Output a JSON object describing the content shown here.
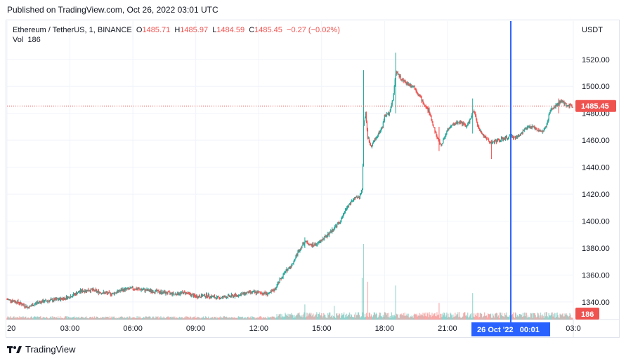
{
  "header": {
    "published": "Published on TradingView.com, Oct 26, 2022 03:01 UTC"
  },
  "legend": {
    "symbol": "Ethereum / TetherUS, 1, BINANCE",
    "o_label": "O",
    "o_value": "1485.71",
    "h_label": "H",
    "h_value": "1485.97",
    "l_label": "L",
    "l_value": "1484.59",
    "c_label": "C",
    "c_value": "1485.45",
    "change": "−0.27 (−0.02%)",
    "vol_label": "Vol",
    "vol_value": "186"
  },
  "footer": {
    "brand": "TradingView"
  },
  "colors": {
    "up": "#26a69a",
    "down": "#ef5350",
    "crosshair": "#2962ff",
    "grid": "#f0f3fa"
  },
  "chart_data": {
    "type": "candlestick",
    "currency": "USDT",
    "y_ticks": [
      1340,
      1360,
      1380,
      1400,
      1420,
      1440,
      1460,
      1480,
      1500,
      1520
    ],
    "ylim": [
      1328,
      1536
    ],
    "x_ticks": [
      "20",
      "03:00",
      "06:00",
      "09:00",
      "12:00",
      "15:00",
      "18:00",
      "21:00",
      "03:0"
    ],
    "x_tick_hours": [
      0,
      3,
      6,
      9,
      12,
      15,
      18,
      21,
      27
    ],
    "xlim_hours": [
      0,
      27
    ],
    "crosshair": {
      "label": "26 Oct '22   00:01",
      "hour": 24.02
    },
    "last_price": {
      "label": "1485.45",
      "value": 1485.45
    },
    "last_volume": {
      "label": "186"
    },
    "price_path": [
      [
        0,
        1342
      ],
      [
        0.5,
        1340
      ],
      [
        1.0,
        1336
      ],
      [
        1.5,
        1340
      ],
      [
        2.0,
        1341
      ],
      [
        2.5,
        1342
      ],
      [
        3.0,
        1344
      ],
      [
        3.5,
        1348
      ],
      [
        4.0,
        1349
      ],
      [
        4.5,
        1347
      ],
      [
        5.0,
        1346
      ],
      [
        5.5,
        1349
      ],
      [
        6.0,
        1350
      ],
      [
        6.5,
        1349
      ],
      [
        7.0,
        1348
      ],
      [
        7.5,
        1347
      ],
      [
        8.0,
        1346
      ],
      [
        8.5,
        1347
      ],
      [
        9.0,
        1344
      ],
      [
        9.5,
        1345
      ],
      [
        10.0,
        1343
      ],
      [
        10.5,
        1344
      ],
      [
        11.0,
        1345
      ],
      [
        11.5,
        1347
      ],
      [
        12.0,
        1347
      ],
      [
        12.5,
        1346
      ],
      [
        12.8,
        1350
      ],
      [
        13.0,
        1356
      ],
      [
        13.3,
        1363
      ],
      [
        13.6,
        1368
      ],
      [
        13.9,
        1378
      ],
      [
        14.2,
        1385
      ],
      [
        14.5,
        1382
      ],
      [
        14.8,
        1383
      ],
      [
        15.0,
        1386
      ],
      [
        15.3,
        1390
      ],
      [
        15.6,
        1395
      ],
      [
        15.9,
        1400
      ],
      [
        16.2,
        1410
      ],
      [
        16.5,
        1416
      ],
      [
        16.8,
        1418
      ],
      [
        16.95,
        1425
      ],
      [
        17.0,
        1472
      ],
      [
        17.1,
        1480
      ],
      [
        17.2,
        1462
      ],
      [
        17.35,
        1456
      ],
      [
        17.6,
        1462
      ],
      [
        17.9,
        1470
      ],
      [
        18.0,
        1478
      ],
      [
        18.2,
        1480
      ],
      [
        18.4,
        1490
      ],
      [
        18.55,
        1512
      ],
      [
        18.8,
        1505
      ],
      [
        19.1,
        1502
      ],
      [
        19.4,
        1500
      ],
      [
        19.7,
        1492
      ],
      [
        19.9,
        1486
      ],
      [
        20.1,
        1482
      ],
      [
        20.3,
        1472
      ],
      [
        20.5,
        1462
      ],
      [
        20.7,
        1456
      ],
      [
        21.0,
        1468
      ],
      [
        21.3,
        1472
      ],
      [
        21.6,
        1474
      ],
      [
        21.9,
        1470
      ],
      [
        22.1,
        1476
      ],
      [
        22.25,
        1482
      ],
      [
        22.5,
        1468
      ],
      [
        22.8,
        1462
      ],
      [
        23.1,
        1458
      ],
      [
        23.4,
        1460
      ],
      [
        23.7,
        1461
      ],
      [
        24.0,
        1463
      ],
      [
        24.3,
        1462
      ],
      [
        24.6,
        1467
      ],
      [
        24.9,
        1470
      ],
      [
        25.2,
        1469
      ],
      [
        25.5,
        1466
      ],
      [
        25.7,
        1470
      ],
      [
        25.9,
        1482
      ],
      [
        26.2,
        1486
      ],
      [
        26.4,
        1489
      ],
      [
        26.7,
        1486
      ],
      [
        27.0,
        1485.45
      ]
    ],
    "spikes": [
      {
        "hour": 17.0,
        "high": 1512,
        "low": 1455
      },
      {
        "hour": 18.55,
        "high": 1525,
        "low": 1480
      },
      {
        "hour": 22.2,
        "high": 1491,
        "low": 1465
      },
      {
        "hour": 23.1,
        "high": 1458,
        "low": 1446
      },
      {
        "hour": 26.3,
        "high": 1491,
        "low": 1480
      },
      {
        "hour": 14.2,
        "high": 1388,
        "low": 1380
      },
      {
        "hour": 20.6,
        "high": 1470,
        "low": 1452
      }
    ],
    "volume_spikes": [
      {
        "hour": 17.0,
        "level": 1.0
      },
      {
        "hour": 16.95,
        "level": 0.55
      },
      {
        "hour": 17.2,
        "level": 0.5
      },
      {
        "hour": 18.55,
        "level": 0.45
      },
      {
        "hour": 22.2,
        "level": 0.35
      },
      {
        "hour": 14.2,
        "level": 0.2
      },
      {
        "hour": 20.6,
        "level": 0.22
      },
      {
        "hour": 15.6,
        "level": 0.18
      }
    ]
  }
}
